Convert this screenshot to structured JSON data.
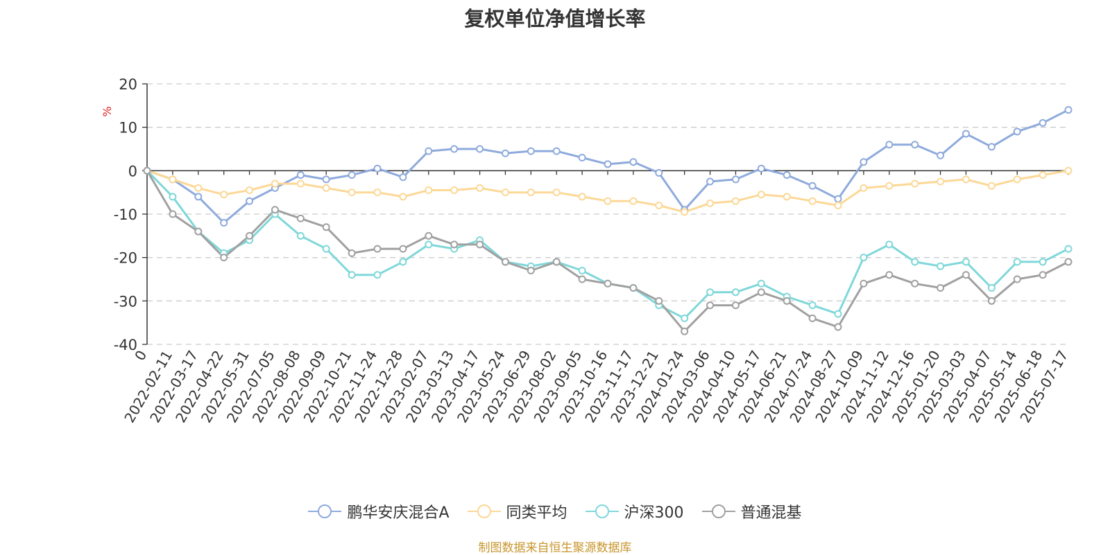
{
  "title": "复权单位净值增长率",
  "source_note": "制图数据来自恒生聚源数据库",
  "chart_data": {
    "type": "line",
    "ylabel": "%",
    "ylim": [
      -40,
      20
    ],
    "yticks": [
      20,
      10,
      0,
      -10,
      -20,
      -30,
      -40
    ],
    "grid": true,
    "legend_position": "bottom",
    "x": [
      "0",
      "2022-02-11",
      "2022-03-17",
      "2022-04-22",
      "2022-05-31",
      "2022-07-05",
      "2022-08-08",
      "2022-09-09",
      "2022-10-21",
      "2022-11-24",
      "2022-12-28",
      "2023-02-07",
      "2023-03-13",
      "2023-04-17",
      "2023-05-24",
      "2023-06-29",
      "2023-08-02",
      "2023-09-05",
      "2023-10-16",
      "2023-11-17",
      "2023-12-21",
      "2024-01-24",
      "2024-03-06",
      "2024-04-10",
      "2024-05-17",
      "2024-06-21",
      "2024-07-24",
      "2024-08-27",
      "2024-10-09",
      "2024-11-12",
      "2024-12-16",
      "2025-01-20",
      "2025-03-03",
      "2025-04-07",
      "2025-05-14",
      "2025-06-18",
      "2025-07-17"
    ],
    "series": [
      {
        "name": "鹏华安庆混合A",
        "color": "#8eaadc",
        "values": [
          0,
          -2,
          -6,
          -12,
          -7,
          -4,
          -1,
          -2,
          -1,
          0.5,
          -1.5,
          4.5,
          5,
          5,
          4,
          4.5,
          4.5,
          3,
          1.5,
          2,
          -0.5,
          -9,
          -2.5,
          -2,
          0.5,
          -1,
          -3.5,
          -6.5,
          2,
          6,
          6,
          3.5,
          8.5,
          5.5,
          9,
          11,
          14
        ]
      },
      {
        "name": "同类平均",
        "color": "#fcd896",
        "values": [
          0,
          -2,
          -4,
          -5.5,
          -4.5,
          -3,
          -3,
          -4,
          -5,
          -5,
          -6,
          -4.5,
          -4.5,
          -4,
          -5,
          -5,
          -5,
          -6,
          -7,
          -7,
          -8,
          -9.5,
          -7.5,
          -7,
          -5.5,
          -6,
          -7,
          -8,
          -4,
          -3.5,
          -3,
          -2.5,
          -2,
          -3.5,
          -2,
          -1,
          0
        ]
      },
      {
        "name": "沪深300",
        "color": "#7fd7d9",
        "values": [
          0,
          -6,
          -14,
          -19,
          -16,
          -10,
          -15,
          -18,
          -24,
          -24,
          -21,
          -17,
          -18,
          -16,
          -21,
          -22,
          -21,
          -23,
          -26,
          -27,
          -31,
          -34,
          -28,
          -28,
          -26,
          -29,
          -31,
          -33,
          -20,
          -17,
          -21,
          -22,
          -21,
          -27,
          -21,
          -21,
          -18
        ]
      },
      {
        "name": "普通混基",
        "color": "#a0a0a0",
        "values": [
          0,
          -10,
          -14,
          -20,
          -15,
          -9,
          -11,
          -13,
          -19,
          -18,
          -18,
          -15,
          -17,
          -17,
          -21,
          -23,
          -21,
          -25,
          -26,
          -27,
          -30,
          -37,
          -31,
          -31,
          -28,
          -30,
          -34,
          -36,
          -26,
          -24,
          -26,
          -27,
          -24,
          -30,
          -25,
          -24,
          -21
        ]
      }
    ]
  }
}
